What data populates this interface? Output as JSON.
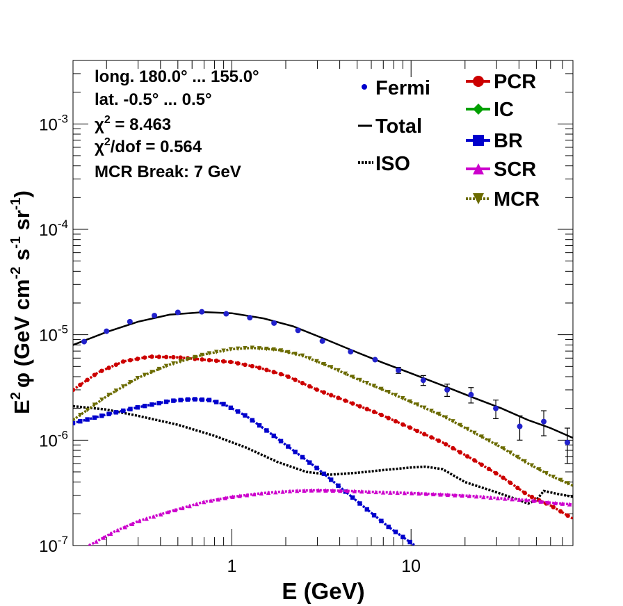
{
  "chart_data": {
    "type": "line",
    "xscale": "log",
    "yscale": "log",
    "xlim": [
      0.13,
      80
    ],
    "ylim": [
      1e-07,
      0.004
    ],
    "xlabel": "E (GeV)",
    "ylabel_parts": {
      "e2": "E",
      "sup2": "2",
      "phi": "φ (GeV cm",
      "m2": "-2",
      "s": " s",
      "m1a": "-1",
      "sr": " sr",
      "m1b": "-1",
      "close": ")"
    },
    "x_ticks": [
      {
        "value": 1,
        "label": "1"
      },
      {
        "value": 10,
        "label": "10"
      }
    ],
    "y_ticks": [
      {
        "value": 1e-07,
        "base": "10",
        "exp": "-7"
      },
      {
        "value": 1e-06,
        "base": "10",
        "exp": "-6"
      },
      {
        "value": 1e-05,
        "base": "10",
        "exp": "-5"
      },
      {
        "value": 0.0001,
        "base": "10",
        "exp": "-4"
      },
      {
        "value": 0.001,
        "base": "10",
        "exp": "-3"
      }
    ],
    "info_lines": [
      {
        "text": "long. 180.0° ... 155.0°"
      },
      {
        "text": "lat. -0.5° ... 0.5°"
      },
      {
        "pre": "χ",
        "sup": "2",
        "post": " = 8.463"
      },
      {
        "pre": "χ",
        "sup": "2",
        "post": "/dof = 0.564"
      },
      {
        "text": "MCR Break:  7 GeV"
      }
    ],
    "legend_left": [
      {
        "label": "Fermi",
        "style": "point"
      },
      {
        "label": "Total",
        "style": "solid"
      },
      {
        "label": "ISO",
        "style": "dotted"
      }
    ],
    "legend_right": [
      {
        "label": "PCR",
        "color": "#cc0000",
        "marker": "circle"
      },
      {
        "label": "IC",
        "color": "#00a000",
        "marker": "diamond"
      },
      {
        "label": "BR",
        "color": "#0000cc",
        "marker": "square"
      },
      {
        "label": "SCR",
        "color": "#cc00cc",
        "marker": "triangle-up"
      },
      {
        "label": "MCR",
        "color": "#6b6b00",
        "marker": "triangle-down"
      }
    ],
    "fermi_points": [
      {
        "x": 0.15,
        "y": 8.6e-06,
        "err": 0
      },
      {
        "x": 0.2,
        "y": 1.08e-05,
        "err": 0
      },
      {
        "x": 0.27,
        "y": 1.33e-05,
        "err": 0
      },
      {
        "x": 0.37,
        "y": 1.52e-05,
        "err": 0
      },
      {
        "x": 0.5,
        "y": 1.63e-05,
        "err": 0
      },
      {
        "x": 0.68,
        "y": 1.65e-05,
        "err": 0
      },
      {
        "x": 0.93,
        "y": 1.58e-05,
        "err": 0
      },
      {
        "x": 1.26,
        "y": 1.45e-05,
        "err": 0
      },
      {
        "x": 1.72,
        "y": 1.29e-05,
        "err": 0
      },
      {
        "x": 2.34,
        "y": 1.1e-05,
        "err": 0
      },
      {
        "x": 3.2,
        "y": 8.7e-06,
        "err": 0
      },
      {
        "x": 4.6,
        "y": 6.9e-06,
        "err": 0
      },
      {
        "x": 6.3,
        "y": 5.8e-06,
        "err": 0
      },
      {
        "x": 8.5,
        "y": 4.6e-06,
        "err": 3e-07
      },
      {
        "x": 11.7,
        "y": 3.7e-06,
        "err": 4e-07
      },
      {
        "x": 15.9,
        "y": 3e-06,
        "err": 4e-07
      },
      {
        "x": 21.6,
        "y": 2.7e-06,
        "err": 4.5e-07
      },
      {
        "x": 29.7,
        "y": 2e-06,
        "err": 4e-07
      },
      {
        "x": 40.4,
        "y": 1.35e-06,
        "err": 3.5e-07
      },
      {
        "x": 55.0,
        "y": 1.5e-06,
        "err": 4e-07
      },
      {
        "x": 74.5,
        "y": 9.5e-07,
        "err": 3.5e-07
      }
    ],
    "series": [
      {
        "name": "Total",
        "color": "#000000",
        "style": "solid",
        "marker": "none",
        "x": [
          0.13,
          0.2,
          0.3,
          0.45,
          0.7,
          1.0,
          1.5,
          2.2,
          3.2,
          5,
          7,
          10,
          15,
          22,
          32,
          45,
          60,
          80
        ],
        "y": [
          8e-06,
          1.06e-05,
          1.33e-05,
          1.55e-05,
          1.64e-05,
          1.6e-05,
          1.43e-05,
          1.2e-05,
          9.3e-06,
          6.8e-06,
          5.4e-06,
          4.3e-06,
          3.3e-06,
          2.55e-06,
          2e-06,
          1.55e-06,
          1.3e-06,
          1.05e-06
        ]
      },
      {
        "name": "ISO",
        "color": "#000000",
        "style": "dotted",
        "marker": "none",
        "x": [
          0.13,
          0.2,
          0.3,
          0.5,
          0.8,
          1.2,
          1.8,
          2.6,
          3.5,
          5,
          7,
          10,
          12,
          15,
          20,
          30,
          40,
          45,
          50,
          55,
          65,
          80
        ],
        "y": [
          2.1e-06,
          1.95e-06,
          1.7e-06,
          1.4e-06,
          1.1e-06,
          8.5e-07,
          6.2e-07,
          5e-07,
          4.7e-07,
          4.9e-07,
          5.2e-07,
          5.5e-07,
          5.6e-07,
          5.3e-07,
          4e-07,
          3.2e-07,
          2.7e-07,
          2.5e-07,
          2.7e-07,
          3.3e-07,
          3.1e-07,
          2.9e-07
        ]
      },
      {
        "name": "PCR",
        "color": "#cc0000",
        "style": "dotted",
        "marker": "circle",
        "x": [
          0.13,
          0.18,
          0.25,
          0.35,
          0.5,
          0.7,
          1.0,
          1.4,
          2.0,
          3.0,
          4.5,
          6.5,
          10,
          15,
          22,
          32,
          45,
          60,
          80
        ],
        "y": [
          3e-06,
          4.4e-06,
          5.6e-06,
          6.2e-06,
          6.1e-06,
          5.8e-06,
          5.5e-06,
          4.9e-06,
          4.1e-06,
          3e-06,
          2.3e-06,
          1.8e-06,
          1.3e-06,
          9.5e-07,
          6.6e-07,
          4.5e-07,
          3e-07,
          2.4e-07,
          1.8e-07
        ]
      },
      {
        "name": "MCR",
        "color": "#6b6b00",
        "style": "dotted",
        "marker": "triangle-down",
        "x": [
          0.13,
          0.2,
          0.3,
          0.45,
          0.7,
          1.0,
          1.3,
          1.8,
          2.5,
          3.5,
          5,
          7,
          10,
          15,
          22,
          32,
          45,
          60,
          80
        ],
        "y": [
          1.55e-06,
          2.6e-06,
          3.9e-06,
          5.2e-06,
          6.5e-06,
          7.3e-06,
          7.5e-06,
          7.2e-06,
          6.3e-06,
          5e-06,
          3.8e-06,
          3e-06,
          2.3e-06,
          1.7e-06,
          1.2e-06,
          8.5e-07,
          6e-07,
          4.6e-07,
          3.7e-07
        ]
      },
      {
        "name": "BR",
        "color": "#0000cc",
        "style": "dotted",
        "marker": "square",
        "x": [
          0.13,
          0.2,
          0.3,
          0.45,
          0.6,
          0.75,
          0.9,
          1.2,
          1.6,
          2.2,
          3.0,
          4.0,
          5.5,
          7.5,
          10.5
        ],
        "y": [
          1.45e-06,
          1.75e-06,
          2.05e-06,
          2.35e-06,
          2.45e-06,
          2.4e-06,
          2.2e-06,
          1.7e-06,
          1.2e-06,
          8e-07,
          5.4e-07,
          3.6e-07,
          2.3e-07,
          1.5e-07,
          1e-07
        ]
      },
      {
        "name": "SCR",
        "color": "#cc00cc",
        "style": "dotted",
        "marker": "triangle-up",
        "x": [
          0.16,
          0.22,
          0.3,
          0.45,
          0.7,
          1.0,
          1.5,
          2.2,
          3.0,
          4.5,
          7,
          10,
          15,
          22,
          32,
          45,
          60,
          80
        ],
        "y": [
          1e-07,
          1.35e-07,
          1.7e-07,
          2.1e-07,
          2.6e-07,
          2.9e-07,
          3.15e-07,
          3.3e-07,
          3.35e-07,
          3.3e-07,
          3.2e-07,
          3.15e-07,
          3.05e-07,
          2.95e-07,
          2.8e-07,
          2.7e-07,
          2.55e-07,
          2.45e-07
        ]
      }
    ]
  }
}
